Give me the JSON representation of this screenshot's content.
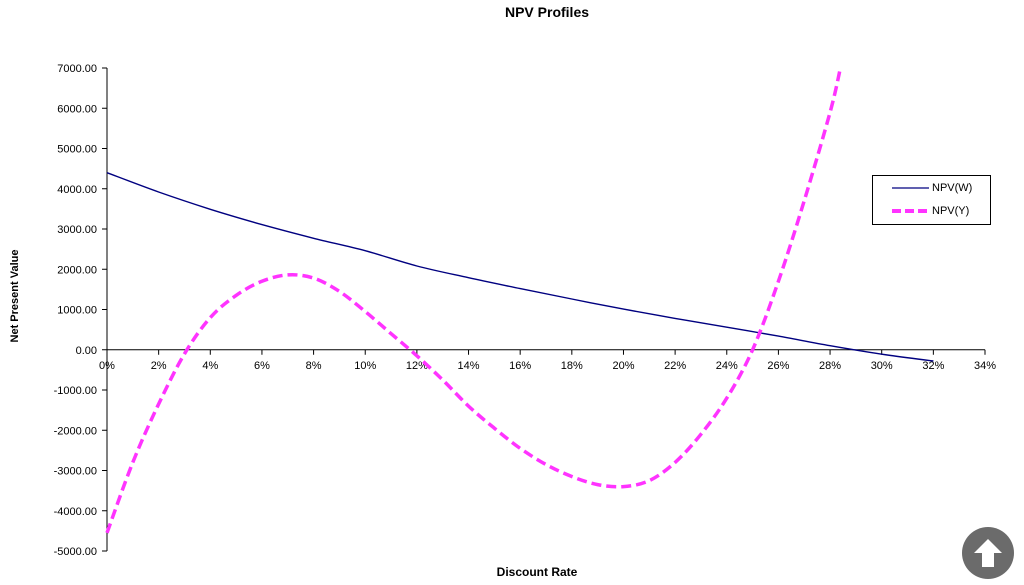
{
  "chart_data": {
    "type": "line",
    "title": "NPV Profiles",
    "xlabel": "Discount Rate",
    "ylabel": "Net Present Value",
    "xlim": [
      0,
      34
    ],
    "ylim": [
      -5000,
      7000
    ],
    "x_ticks": [
      "0%",
      "2%",
      "4%",
      "6%",
      "8%",
      "10%",
      "12%",
      "14%",
      "16%",
      "18%",
      "20%",
      "22%",
      "24%",
      "26%",
      "28%",
      "30%",
      "32%",
      "34%"
    ],
    "y_ticks": [
      "7000.00",
      "6000.00",
      "5000.00",
      "4000.00",
      "3000.00",
      "2000.00",
      "1000.00",
      "0.00",
      "-1000.00",
      "-2000.00",
      "-3000.00",
      "-4000.00",
      "-5000.00"
    ],
    "grid": false,
    "legend_position": "right",
    "series": [
      {
        "name": "NPV(W)",
        "color": "#000080",
        "style": "solid",
        "x": [
          0,
          2,
          4,
          6,
          8,
          10,
          12,
          14,
          16,
          18,
          20,
          22,
          24,
          26,
          28,
          30,
          32
        ],
        "values": [
          4400,
          3920,
          3490,
          3110,
          2770,
          2460,
          2080,
          1790,
          1520,
          1260,
          1010,
          780,
          560,
          340,
          100,
          -110,
          -280
        ]
      },
      {
        "name": "NPV(Y)",
        "color": "#ff33ff",
        "style": "dashed",
        "x": [
          0,
          1,
          2,
          3,
          4,
          5,
          6,
          7,
          8,
          9,
          10,
          11,
          12,
          13,
          14,
          15,
          16,
          17,
          18,
          19,
          20,
          21,
          22,
          23,
          24,
          25,
          26,
          27,
          28,
          28.4
        ],
        "values": [
          -4550,
          -2800,
          -1350,
          -100,
          800,
          1350,
          1700,
          1860,
          1780,
          1450,
          950,
          400,
          -150,
          -750,
          -1400,
          -1950,
          -2450,
          -2850,
          -3150,
          -3350,
          -3400,
          -3250,
          -2800,
          -2100,
          -1200,
          0,
          1700,
          3700,
          5900,
          7000
        ]
      }
    ]
  },
  "legend": {
    "items": [
      {
        "label": "NPV(W)"
      },
      {
        "label": "NPV(Y)"
      }
    ]
  },
  "controls": {
    "scroll_top_icon": "arrow-up-icon"
  }
}
